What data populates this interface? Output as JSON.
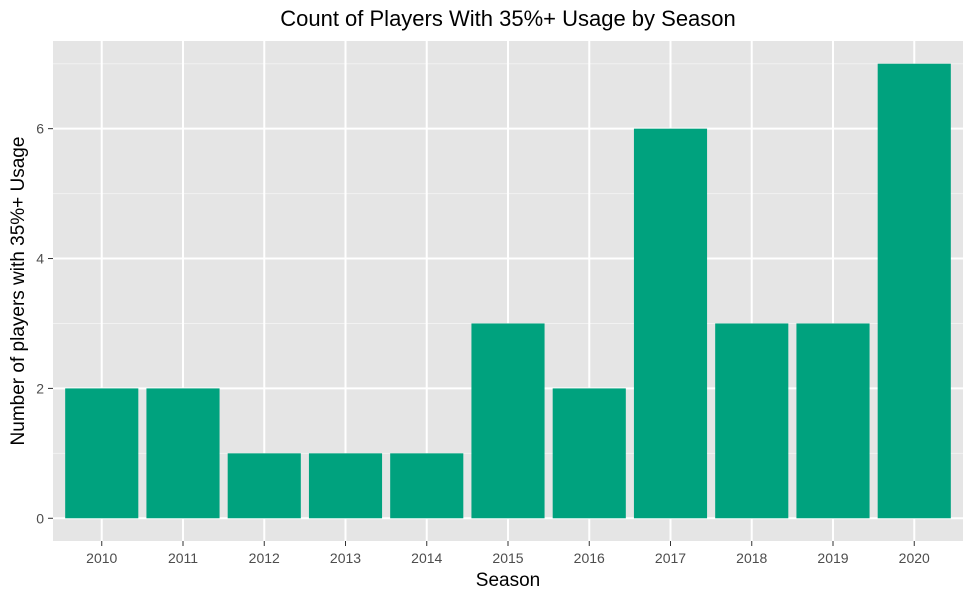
{
  "chart_data": {
    "type": "bar",
    "title": "Count of Players With 35%+ Usage by Season",
    "xlabel": "Season",
    "ylabel": "Number of players with 35%+ Usage",
    "categories": [
      "2010",
      "2011",
      "2012",
      "2013",
      "2014",
      "2015",
      "2016",
      "2017",
      "2018",
      "2019",
      "2020"
    ],
    "values": [
      2,
      2,
      1,
      1,
      1,
      3,
      2,
      6,
      3,
      3,
      7
    ],
    "ylim": [
      -0.35,
      7.35
    ],
    "y_ticks": [
      "0",
      "2",
      "4",
      "6"
    ],
    "grid": true,
    "legend": "none",
    "colors": {
      "bar": "#00a27e",
      "panel": "#e5e5e5",
      "grid_major": "#ffffff",
      "grid_minor": "#f2f2f2"
    }
  }
}
